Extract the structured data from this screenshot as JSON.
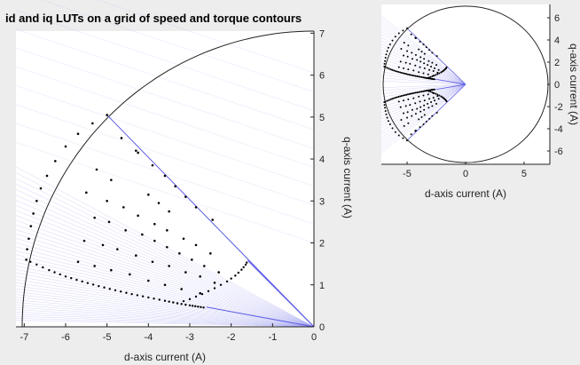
{
  "colors": {
    "figure_bg": "#ededed",
    "axes_bg": "#ffffff",
    "boundary": "#222222",
    "mtpa_line": "#5a5ae6",
    "contour_lines": "#9a9af0",
    "points": "#000000"
  },
  "chart_data": [
    {
      "type": "scatter",
      "title": "id and iq LUTs on a grid of speed and torque contours",
      "xlabel": "d-axis current (A)",
      "ylabel": "q-axis current (A)",
      "xlim": [
        -7.2,
        0
      ],
      "ylim": [
        0,
        7.05
      ],
      "xticks": [
        -7,
        -6,
        -5,
        -4,
        -3,
        -2,
        -1,
        0
      ],
      "yticks": [
        0,
        1,
        2,
        3,
        4,
        5,
        6,
        7
      ],
      "ytick_side": "right",
      "grid": false,
      "current_limit_radius": 7.05,
      "boundary_lines": [
        {
          "x": [
            0,
            -5.0
          ],
          "y": [
            0,
            5.05
          ]
        },
        {
          "x": [
            0,
            -2.6
          ],
          "y": [
            0,
            0.47
          ]
        }
      ],
      "mtpa_curve": {
        "x": [
          -6.85,
          -6.4,
          -6.0,
          -5.6,
          -5.2,
          -4.8,
          -4.4,
          -4.0,
          -3.6,
          -3.3,
          -3.0,
          -2.8,
          -2.6
        ],
        "y": [
          1.55,
          1.35,
          1.2,
          1.08,
          0.97,
          0.87,
          0.78,
          0.7,
          0.62,
          0.56,
          0.51,
          0.48,
          0.45
        ]
      },
      "flux_weakening_curve": {
        "x": [
          -3.3,
          -3.0,
          -2.7,
          -2.4,
          -2.1,
          -1.9,
          -1.75,
          -1.65,
          -1.6
        ],
        "y": [
          0.56,
          0.66,
          0.78,
          0.92,
          1.08,
          1.22,
          1.36,
          1.48,
          1.58
        ]
      },
      "circle_points": {
        "x": [
          -6.95,
          -6.93,
          -6.89,
          -6.84,
          -6.78,
          -6.7,
          -6.6,
          -6.45,
          -6.25,
          -6.0,
          -5.7,
          -5.35,
          -5.0
        ],
        "y": [
          1.6,
          1.85,
          2.1,
          2.4,
          2.7,
          3.0,
          3.3,
          3.6,
          3.95,
          4.3,
          4.6,
          4.85,
          5.05
        ]
      },
      "interior_points": {
        "x": [
          -4.65,
          -4.3,
          -4.25,
          -3.9,
          -3.6,
          -3.35,
          -3.1,
          -2.85,
          -2.45,
          -5.25,
          -4.9,
          -4.0,
          -3.75,
          -3.5,
          -5.5,
          -5.0,
          -4.6,
          -4.25,
          -3.85,
          -3.55,
          -3.15,
          -2.85,
          -2.5,
          -5.3,
          -4.95,
          -4.55,
          -4.15,
          -3.85,
          -3.55,
          -3.25,
          -2.95,
          -2.65,
          -2.3,
          -5.55,
          -5.1,
          -4.75,
          -4.3,
          -3.9,
          -3.5,
          -3.1,
          -2.75,
          -2.4,
          -5.7,
          -5.3,
          -4.9,
          -4.45,
          -4.0,
          -3.6,
          -3.2,
          -2.75
        ],
        "y": [
          4.5,
          4.2,
          4.15,
          3.85,
          3.6,
          3.35,
          3.1,
          2.85,
          2.55,
          3.75,
          3.5,
          3.15,
          2.95,
          2.75,
          3.2,
          3.0,
          2.85,
          2.65,
          2.45,
          2.3,
          2.1,
          1.95,
          1.75,
          2.6,
          2.5,
          2.3,
          2.2,
          2.05,
          1.9,
          1.75,
          1.6,
          1.45,
          1.3,
          2.05,
          1.95,
          1.85,
          1.7,
          1.55,
          1.45,
          1.3,
          1.2,
          1.05,
          1.55,
          1.45,
          1.35,
          1.25,
          1.1,
          1.0,
          0.9,
          0.8
        ]
      }
    },
    {
      "type": "scatter",
      "title": "",
      "xlabel": "d-axis current (A)",
      "ylabel": "q-axis current (A)",
      "xlim": [
        -7.2,
        7.2
      ],
      "ylim": [
        -7.2,
        7.2
      ],
      "xticks": [
        -5,
        0,
        5
      ],
      "yticks": [
        -6,
        -4,
        -2,
        0,
        2,
        4,
        6
      ],
      "ytick_side": "right",
      "grid": false,
      "current_limit_radius": 7.05,
      "upper_cluster_mirror": true
    }
  ]
}
